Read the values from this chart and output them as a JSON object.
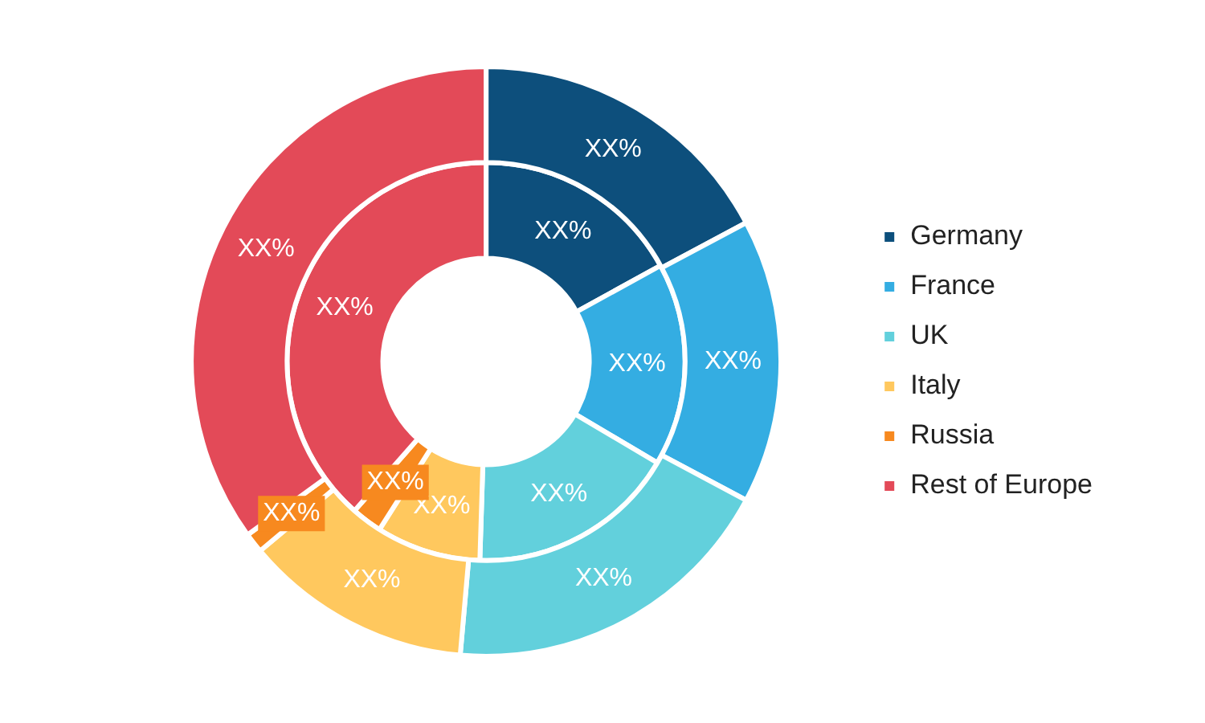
{
  "chart_data": {
    "type": "donut",
    "categories": [
      "Germany",
      "France",
      "UK",
      "Italy",
      "Russia",
      "Rest of Europe"
    ],
    "colors": [
      "#0d4f7c",
      "#34ade2",
      "#62d0dc",
      "#ffc85e",
      "#f7891f",
      "#e34a58"
    ],
    "series": [
      {
        "values": [
          17.2,
          15.6,
          18.6,
          12.5,
          1.1,
          35
        ],
        "value_labels": [
          "XX%",
          "XX%",
          "XX%",
          "XX%",
          "XX%",
          "XX%"
        ]
      },
      {
        "values": [
          17,
          16.5,
          17,
          8.5,
          2.5,
          38.5
        ],
        "value_labels": [
          "XX%",
          "XX%",
          "XX%",
          "XX%",
          "XX%",
          "XX%"
        ]
      }
    ],
    "legend": "right"
  }
}
